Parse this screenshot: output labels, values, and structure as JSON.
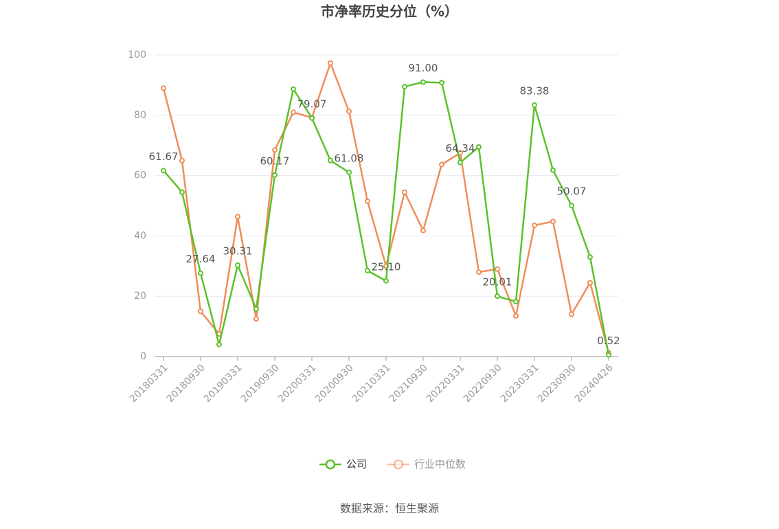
{
  "chart_data": {
    "type": "line",
    "title": "市净率历史分位（%）",
    "categories": [
      "20180331",
      null,
      "20180930",
      null,
      "20190331",
      null,
      "20190930",
      null,
      "20200331",
      null,
      "20200930",
      null,
      "20210331",
      null,
      "20210930",
      null,
      "20220331",
      null,
      "20220930",
      null,
      "20230331",
      null,
      "20230930",
      null,
      "20240426"
    ],
    "series": [
      {
        "name": "公司",
        "color": "#5ac229",
        "values": [
          61.67,
          54.5,
          27.64,
          4,
          30.31,
          15.8,
          60.17,
          88.7,
          79.07,
          65,
          61.08,
          28.5,
          25.1,
          89.5,
          91,
          90.8,
          64.34,
          69.5,
          20.01,
          18.2,
          83.38,
          61.8,
          50.07,
          33,
          0.52
        ],
        "value_labels": [
          "61.67",
          null,
          "27.64",
          null,
          "30.31",
          null,
          "60.17",
          null,
          "79.07",
          null,
          "61.08",
          null,
          "25.10",
          null,
          "91.00",
          null,
          "64.34",
          null,
          "20.01",
          null,
          "83.38",
          null,
          "50.07",
          null,
          "0.52"
        ]
      },
      {
        "name": "行业中位数",
        "color": "#f08c5a",
        "values": [
          89,
          65,
          15,
          7.5,
          46.4,
          12.5,
          68.5,
          81,
          79.2,
          97.3,
          81.3,
          51.5,
          30,
          54.5,
          41.8,
          63.7,
          67.5,
          28,
          29,
          13.5,
          43.5,
          44.8,
          14,
          24.5,
          1.2
        ]
      }
    ],
    "ylim": [
      0,
      100
    ],
    "yticks": [
      0,
      20,
      40,
      60,
      80,
      100
    ],
    "grid": true,
    "source": "数据来源：恒生聚源"
  }
}
